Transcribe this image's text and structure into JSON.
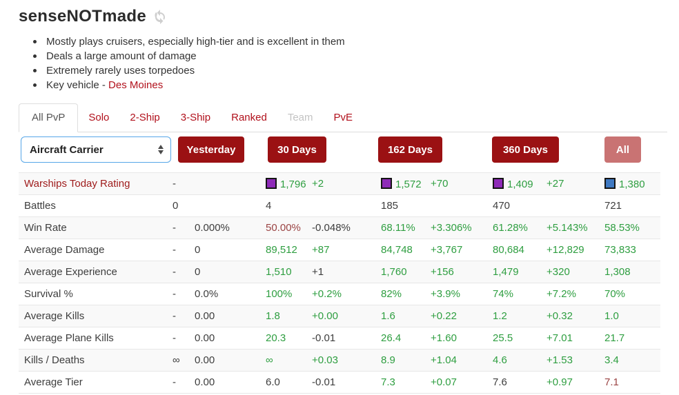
{
  "header": {
    "title": "senseNOTmade",
    "refresh_icon": "refresh-icon"
  },
  "summary": {
    "bullets": [
      {
        "text": "Mostly plays cruisers, especially high-tier and is excellent in them"
      },
      {
        "text": "Deals a large amount of damage"
      },
      {
        "text": "Extremely rarely uses torpedoes"
      },
      {
        "text": "Key vehicle - ",
        "link": "Des Moines"
      }
    ]
  },
  "tabs": [
    {
      "label": "All PvP",
      "state": "active"
    },
    {
      "label": "Solo",
      "state": "link"
    },
    {
      "label": "2-Ship",
      "state": "link"
    },
    {
      "label": "3-Ship",
      "state": "link"
    },
    {
      "label": "Ranked",
      "state": "link"
    },
    {
      "label": "Team",
      "state": "disabled"
    },
    {
      "label": "PvE",
      "state": "link"
    }
  ],
  "controls": {
    "ship_class_select": {
      "value": "Aircraft Carrier"
    },
    "period_buttons": [
      {
        "label": "Yesterday",
        "active": false
      },
      {
        "label": "30 Days",
        "active": false
      },
      {
        "label": "162 Days",
        "active": false
      },
      {
        "label": "360 Days",
        "active": false
      },
      {
        "label": "All",
        "active": true
      }
    ]
  },
  "colors": {
    "positive_green": "#2e9e40",
    "negative_red": "#9a4343",
    "neutral_dark": "#3d3d3d",
    "link_red": "#b1101b",
    "button_red": "#9b1113",
    "button_active_red": "#c97373",
    "rating_purple": "#8e2bb8",
    "rating_blue": "#3f79c2"
  },
  "stats_table": {
    "column_periods": [
      "Yesterday value",
      "Yesterday change",
      "30 Days value",
      "30 Days change",
      "162 Days value",
      "162 Days change",
      "360 Days value",
      "360 Days change",
      "All value"
    ],
    "rows": [
      {
        "label": "Warships Today Rating",
        "label_link": true,
        "cells": [
          {
            "text": "-",
            "color": "dark"
          },
          {
            "text": "",
            "color": "dark"
          },
          {
            "text": "1,796",
            "color": "green",
            "icon": "purple-square"
          },
          {
            "text": "+2",
            "color": "green"
          },
          {
            "text": "1,572",
            "color": "green",
            "icon": "purple-square"
          },
          {
            "text": "+70",
            "color": "green"
          },
          {
            "text": "1,409",
            "color": "green",
            "icon": "purple-square"
          },
          {
            "text": "+27",
            "color": "green"
          },
          {
            "text": "1,380",
            "color": "green",
            "icon": "blue-square"
          }
        ]
      },
      {
        "label": "Battles",
        "label_link": false,
        "cells": [
          {
            "text": "0",
            "color": "dark"
          },
          {
            "text": "",
            "color": "dark"
          },
          {
            "text": "4",
            "color": "dark"
          },
          {
            "text": "",
            "color": "dark"
          },
          {
            "text": "185",
            "color": "dark"
          },
          {
            "text": "",
            "color": "dark"
          },
          {
            "text": "470",
            "color": "dark"
          },
          {
            "text": "",
            "color": "dark"
          },
          {
            "text": "721",
            "color": "dark"
          }
        ]
      },
      {
        "label": "Win Rate",
        "label_link": false,
        "cells": [
          {
            "text": "-",
            "color": "dark"
          },
          {
            "text": "0.000%",
            "color": "dark"
          },
          {
            "text": "50.00%",
            "color": "red"
          },
          {
            "text": "-0.048%",
            "color": "dark"
          },
          {
            "text": "68.11%",
            "color": "green"
          },
          {
            "text": "+3.306%",
            "color": "green"
          },
          {
            "text": "61.28%",
            "color": "green"
          },
          {
            "text": "+5.143%",
            "color": "green"
          },
          {
            "text": "58.53%",
            "color": "green"
          }
        ]
      },
      {
        "label": "Average Damage",
        "label_link": false,
        "cells": [
          {
            "text": "-",
            "color": "dark"
          },
          {
            "text": "0",
            "color": "dark"
          },
          {
            "text": "89,512",
            "color": "green"
          },
          {
            "text": "+87",
            "color": "green"
          },
          {
            "text": "84,748",
            "color": "green"
          },
          {
            "text": "+3,767",
            "color": "green"
          },
          {
            "text": "80,684",
            "color": "green"
          },
          {
            "text": "+12,829",
            "color": "green"
          },
          {
            "text": "73,833",
            "color": "green"
          }
        ]
      },
      {
        "label": "Average Experience",
        "label_link": false,
        "cells": [
          {
            "text": "-",
            "color": "dark"
          },
          {
            "text": "0",
            "color": "dark"
          },
          {
            "text": "1,510",
            "color": "green"
          },
          {
            "text": "+1",
            "color": "dark"
          },
          {
            "text": "1,760",
            "color": "green"
          },
          {
            "text": "+156",
            "color": "green"
          },
          {
            "text": "1,479",
            "color": "green"
          },
          {
            "text": "+320",
            "color": "green"
          },
          {
            "text": "1,308",
            "color": "green"
          }
        ]
      },
      {
        "label": "Survival %",
        "label_link": false,
        "cells": [
          {
            "text": "-",
            "color": "dark"
          },
          {
            "text": "0.0%",
            "color": "dark"
          },
          {
            "text": "100%",
            "color": "green"
          },
          {
            "text": "+0.2%",
            "color": "green"
          },
          {
            "text": "82%",
            "color": "green"
          },
          {
            "text": "+3.9%",
            "color": "green"
          },
          {
            "text": "74%",
            "color": "green"
          },
          {
            "text": "+7.2%",
            "color": "green"
          },
          {
            "text": "70%",
            "color": "green"
          }
        ]
      },
      {
        "label": "Average Kills",
        "label_link": false,
        "cells": [
          {
            "text": "-",
            "color": "dark"
          },
          {
            "text": "0.00",
            "color": "dark"
          },
          {
            "text": "1.8",
            "color": "green"
          },
          {
            "text": "+0.00",
            "color": "green"
          },
          {
            "text": "1.6",
            "color": "green"
          },
          {
            "text": "+0.22",
            "color": "green"
          },
          {
            "text": "1.2",
            "color": "green"
          },
          {
            "text": "+0.32",
            "color": "green"
          },
          {
            "text": "1.0",
            "color": "green"
          }
        ]
      },
      {
        "label": "Average Plane Kills",
        "label_link": false,
        "cells": [
          {
            "text": "-",
            "color": "dark"
          },
          {
            "text": "0.00",
            "color": "dark"
          },
          {
            "text": "20.3",
            "color": "green"
          },
          {
            "text": "-0.01",
            "color": "dark"
          },
          {
            "text": "26.4",
            "color": "green"
          },
          {
            "text": "+1.60",
            "color": "green"
          },
          {
            "text": "25.5",
            "color": "green"
          },
          {
            "text": "+7.01",
            "color": "green"
          },
          {
            "text": "21.7",
            "color": "green"
          }
        ]
      },
      {
        "label": "Kills / Deaths",
        "label_link": false,
        "cells": [
          {
            "text": "∞",
            "color": "dark"
          },
          {
            "text": "0.00",
            "color": "dark"
          },
          {
            "text": "∞",
            "color": "green"
          },
          {
            "text": "+0.03",
            "color": "green"
          },
          {
            "text": "8.9",
            "color": "green"
          },
          {
            "text": "+1.04",
            "color": "green"
          },
          {
            "text": "4.6",
            "color": "green"
          },
          {
            "text": "+1.53",
            "color": "green"
          },
          {
            "text": "3.4",
            "color": "green"
          }
        ]
      },
      {
        "label": "Average Tier",
        "label_link": false,
        "cells": [
          {
            "text": "-",
            "color": "dark"
          },
          {
            "text": "0.00",
            "color": "dark"
          },
          {
            "text": "6.0",
            "color": "dark"
          },
          {
            "text": "-0.01",
            "color": "dark"
          },
          {
            "text": "7.3",
            "color": "green"
          },
          {
            "text": "+0.07",
            "color": "green"
          },
          {
            "text": "7.6",
            "color": "dark"
          },
          {
            "text": "+0.97",
            "color": "green"
          },
          {
            "text": "7.1",
            "color": "red"
          }
        ]
      }
    ]
  }
}
